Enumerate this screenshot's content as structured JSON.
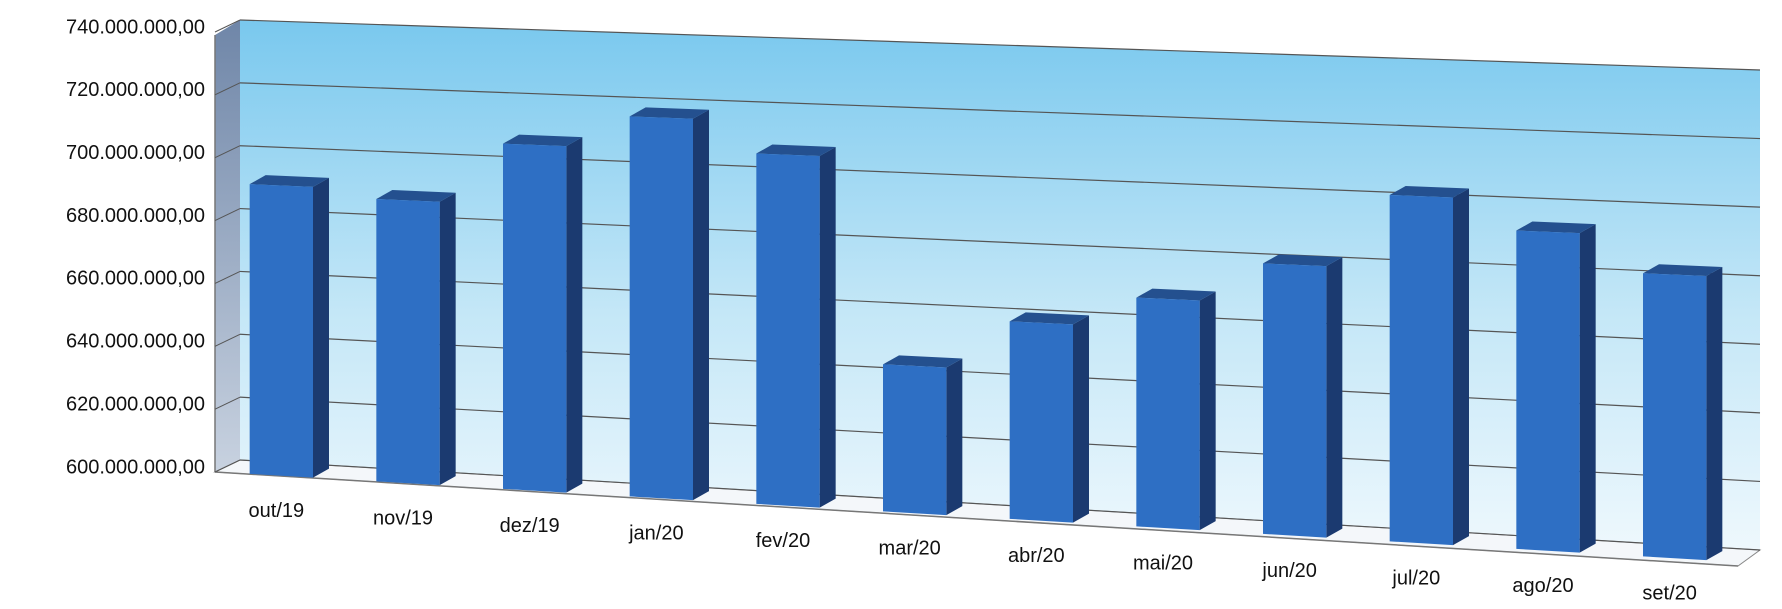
{
  "chart_data": {
    "type": "bar3d",
    "categories": [
      "out/19",
      "nov/19",
      "dez/19",
      "jan/20",
      "fev/20",
      "mar/20",
      "abr/20",
      "mai/20",
      "jun/20",
      "jul/20",
      "ago/20",
      "set/20"
    ],
    "values": [
      692000000,
      689000000,
      708000000,
      718000000,
      708000000,
      645000000,
      660000000,
      669000000,
      681000000,
      703000000,
      694000000,
      683000000
    ],
    "color": "#2e6fc4",
    "ylim": [
      600000000,
      740000000
    ],
    "yticks": [
      {
        "value": 600000000,
        "label": "600.000.000,00"
      },
      {
        "value": 620000000,
        "label": "620.000.000,00"
      },
      {
        "value": 640000000,
        "label": "640.000.000,00"
      },
      {
        "value": 660000000,
        "label": "660.000.000,00"
      },
      {
        "value": 680000000,
        "label": "680.000.000,00"
      },
      {
        "value": 700000000,
        "label": "700.000.000,00"
      },
      {
        "value": 720000000,
        "label": "720.000.000,00"
      },
      {
        "value": 740000000,
        "label": "740.000.000,00"
      }
    ],
    "grid": true
  }
}
